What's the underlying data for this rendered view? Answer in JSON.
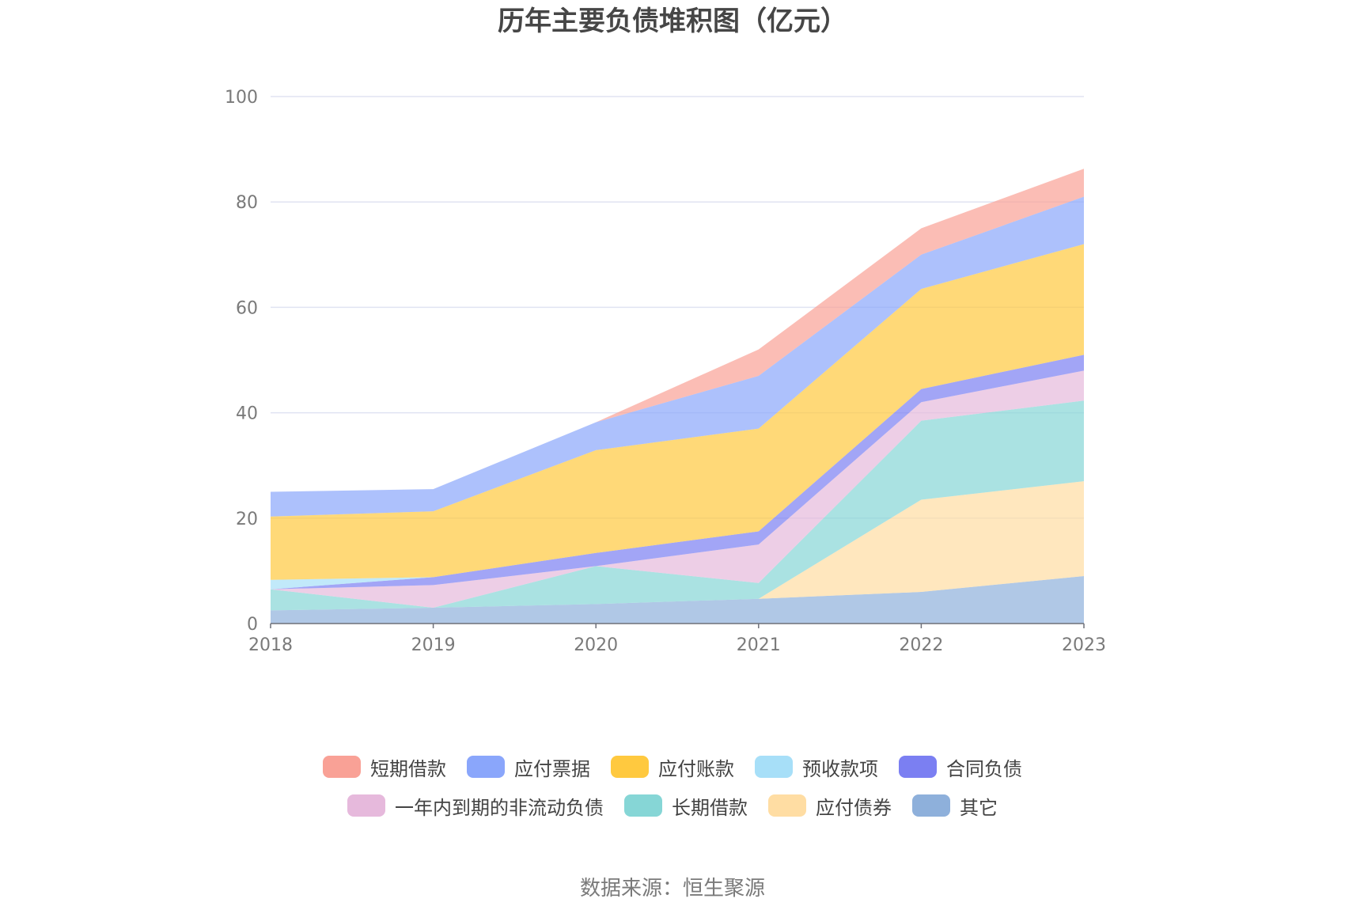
{
  "chart_data": {
    "type": "area",
    "stacked": true,
    "title": "历年主要负债堆积图（亿元）",
    "source": "数据来源：恒生聚源",
    "x": [
      "2018",
      "2019",
      "2020",
      "2021",
      "2022",
      "2023"
    ],
    "ylim": [
      0,
      100
    ],
    "yticks": [
      "0",
      "20",
      "40",
      "60",
      "80",
      "100"
    ],
    "grid": true,
    "legend_position": "bottom",
    "series": [
      {
        "name": "其它",
        "color": "#8eb0db",
        "values": [
          2.5,
          3.0,
          3.7,
          4.7,
          6.0,
          9.0
        ]
      },
      {
        "name": "应付债券",
        "color": "#ffdda3",
        "values": [
          0.0,
          0.0,
          0.0,
          0.0,
          17.5,
          18.0
        ]
      },
      {
        "name": "长期借款",
        "color": "#86d6d6",
        "values": [
          4.0,
          0.0,
          7.2,
          3.0,
          15.0,
          15.3
        ]
      },
      {
        "name": "一年内到期的非流动负债",
        "color": "#e6b9dc",
        "values": [
          0.0,
          4.3,
          0.0,
          7.3,
          3.5,
          5.7
        ]
      },
      {
        "name": "合同负债",
        "color": "#7b7ff2",
        "values": [
          0.0,
          1.5,
          2.5,
          2.5,
          2.5,
          3.0
        ]
      },
      {
        "name": "预收款项",
        "color": "#a7dff8",
        "values": [
          1.8,
          0.0,
          0.0,
          0.0,
          0.0,
          0.0
        ]
      },
      {
        "name": "应付账款",
        "color": "#ffc93f",
        "values": [
          12.0,
          12.5,
          19.5,
          19.5,
          19.0,
          21.0
        ]
      },
      {
        "name": "应付票据",
        "color": "#8aa6fb",
        "values": [
          4.7,
          4.2,
          5.3,
          10.0,
          6.5,
          9.0
        ]
      },
      {
        "name": "短期借款",
        "color": "#f9a196",
        "values": [
          0.0,
          0.0,
          0.0,
          5.0,
          5.0,
          5.3
        ]
      }
    ],
    "legend_rows": [
      [
        "短期借款",
        "应付票据",
        "应付账款",
        "预收款项",
        "合同负债"
      ],
      [
        "一年内到期的非流动负债",
        "长期借款",
        "应付债券",
        "其它"
      ]
    ]
  }
}
